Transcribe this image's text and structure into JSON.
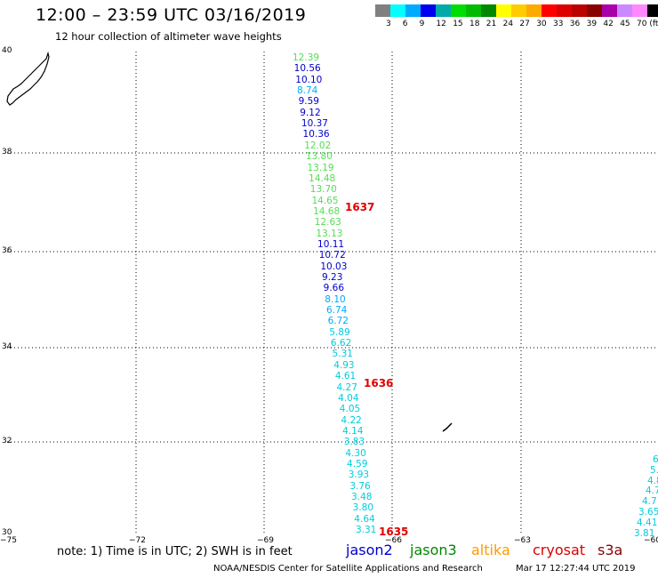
{
  "header": {
    "title": "12:00 – 23:59 UTC 03/16/2019",
    "subtitle": "12 hour collection of altimeter wave heights"
  },
  "legend": {
    "colors": [
      "#808080",
      "#00ffff",
      "#00aaff",
      "#0000ee",
      "#00aaaa",
      "#00dd00",
      "#00bb00",
      "#008800",
      "#ffff00",
      "#ffcc00",
      "#ffaa00",
      "#ff0000",
      "#dd0000",
      "#bb0000",
      "#880000",
      "#aa00aa",
      "#cc88ff",
      "#ff88ff",
      "#000000"
    ],
    "labels": [
      "3",
      "6",
      "9",
      "12",
      "15",
      "18",
      "21",
      "24",
      "27",
      "30",
      "33",
      "36",
      "39",
      "42",
      "45",
      "70 (ft)"
    ]
  },
  "axes": {
    "lat_labels": [
      "40",
      "38",
      "36",
      "34",
      "32",
      "30"
    ],
    "lon_labels": [
      "−75",
      "−72",
      "−69",
      "−66",
      "−63",
      "−60"
    ]
  },
  "track_main": {
    "values": [
      "12.39",
      "10.56",
      "10.10",
      "8.74",
      "9.59",
      "9.12",
      "10.37",
      "10.36",
      "12.02",
      "13.80",
      "13.19",
      "14.48",
      "13.70",
      "14.65",
      "14.68",
      "12.63",
      "13.13",
      "10.11",
      "10.72",
      "10.03",
      "9.23",
      "9.66",
      "8.10",
      "6.74",
      "6.72",
      "5.89",
      "6.62",
      "5.31",
      "4.93",
      "4.61",
      "4.27",
      "4.04",
      "4.05",
      "4.22",
      "4.14",
      "3.83",
      "4.30",
      "4.59",
      "3.93",
      "3.76",
      "3.48",
      "3.80",
      "4.64",
      "3.31"
    ],
    "colors": [
      "#55dd55",
      "#0000cc",
      "#0000cc",
      "#00aaff",
      "#0000cc",
      "#0000cc",
      "#0000cc",
      "#0000cc",
      "#55dd55",
      "#55dd55",
      "#55dd55",
      "#55dd55",
      "#55dd55",
      "#55dd55",
      "#55dd55",
      "#55dd55",
      "#55dd55",
      "#0000cc",
      "#0000cc",
      "#0000cc",
      "#0000cc",
      "#0000cc",
      "#00aaff",
      "#00aaff",
      "#00aaff",
      "#00ccdd",
      "#00ccdd",
      "#00ccdd",
      "#00ccdd",
      "#00ccdd",
      "#00ccdd",
      "#00ccdd",
      "#00ccdd",
      "#00ccdd",
      "#00ccdd",
      "#00ccdd",
      "#00ccdd",
      "#00ccdd",
      "#00ccdd",
      "#00ccdd",
      "#00ccdd",
      "#00ccdd",
      "#00ccdd",
      "#00ccdd"
    ]
  },
  "track_right": {
    "values": [
      "6",
      "5.",
      "4.8",
      "4.7",
      "4.7",
      "3.65",
      "4.41",
      "3.81"
    ],
    "color": "#00ccdd"
  },
  "time_labels": [
    "1637",
    "1636",
    "1635"
  ],
  "footer": {
    "note": "note: 1) Time is in UTC; 2) SWH is in feet",
    "satellites": [
      {
        "name": "jason2",
        "color": "#0000cc"
      },
      {
        "name": "jason3",
        "color": "#008800"
      },
      {
        "name": "altika",
        "color": "#ff9900"
      },
      {
        "name": "cryosat",
        "color": "#dd0000"
      },
      {
        "name": "s3a",
        "color": "#880000"
      }
    ],
    "credit": "NOAA/NESDIS Center for Satellite Applications and Research",
    "timestamp": "Mar 17 12:27:44 UTC 2019"
  }
}
